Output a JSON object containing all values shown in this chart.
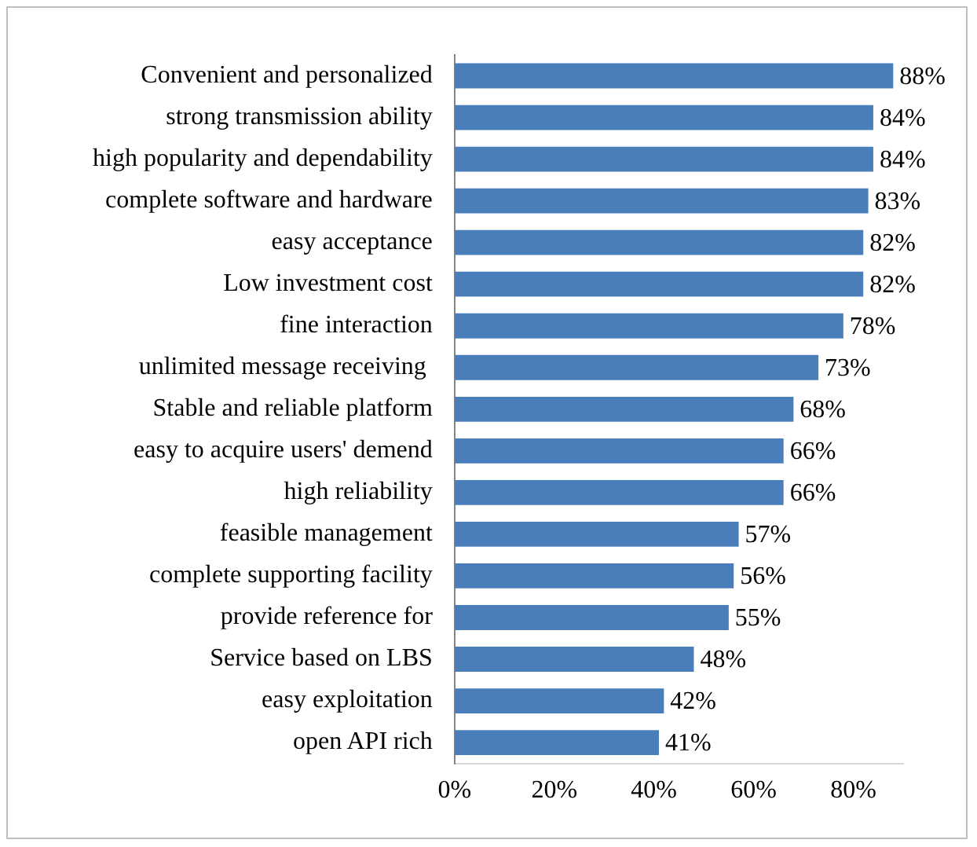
{
  "chart_data": {
    "type": "bar",
    "orientation": "horizontal",
    "categories": [
      "Convenient and personalized",
      "strong transmission ability",
      "high popularity and dependability",
      "complete software and hardware",
      "easy acceptance",
      "Low investment cost",
      "fine interaction",
      "unlimited message receiving ",
      "Stable and reliable platform",
      "easy to acquire users' demend",
      "high reliability",
      "feasible management",
      "complete supporting facility",
      "provide reference for",
      "Service based on LBS",
      "easy exploitation",
      "open API rich"
    ],
    "values": [
      88,
      84,
      84,
      83,
      82,
      82,
      78,
      73,
      68,
      66,
      66,
      57,
      56,
      55,
      48,
      42,
      41
    ],
    "value_labels": [
      "88%",
      "84%",
      "84%",
      "83%",
      "82%",
      "82%",
      "78%",
      "73%",
      "68%",
      "66%",
      "66%",
      "57%",
      "56%",
      "55%",
      "48%",
      "42%",
      "41%"
    ],
    "color": "#4a7ebb",
    "xlim": [
      0,
      90
    ],
    "xticks": [
      {
        "value": 0,
        "label": "0%"
      },
      {
        "value": 20,
        "label": "20%"
      },
      {
        "value": 40,
        "label": "40%"
      },
      {
        "value": 60,
        "label": "60%"
      },
      {
        "value": 80,
        "label": "80%"
      }
    ],
    "grid": false,
    "legend": false
  }
}
